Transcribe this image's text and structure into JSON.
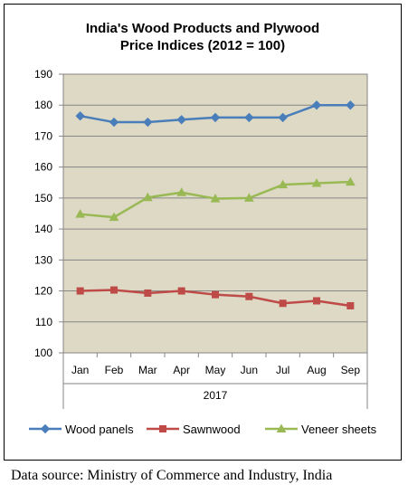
{
  "chart_data": {
    "type": "line",
    "title": [
      "India's Wood Products and Plywood",
      "Price Indices (2012 = 100)"
    ],
    "categories": [
      "Jan",
      "Feb",
      "Mar",
      "Apr",
      "May",
      "Jun",
      "Jul",
      "Aug",
      "Sep"
    ],
    "group_label": "2017",
    "ylim": [
      100,
      190
    ],
    "yticks": [
      100,
      110,
      120,
      130,
      140,
      150,
      160,
      170,
      180,
      190
    ],
    "grid": true,
    "legend_position": "bottom",
    "plot_background": "#ddd9c4",
    "series": [
      {
        "name": "Wood panels",
        "color": "#4a7ebb",
        "marker": "diamond",
        "values": [
          176.5,
          174.5,
          174.5,
          175.3,
          176,
          176,
          176,
          180,
          180
        ]
      },
      {
        "name": "Sawnwood",
        "color": "#be4b48",
        "marker": "square",
        "values": [
          120,
          120.3,
          119.3,
          120,
          118.8,
          118.2,
          116,
          116.8,
          115.2
        ]
      },
      {
        "name": "Veneer sheets",
        "color": "#98b954",
        "marker": "triangle",
        "values": [
          144.8,
          143.8,
          150.2,
          151.8,
          149.8,
          150,
          154.3,
          154.8,
          155.2
        ]
      }
    ]
  },
  "source": "Data source: Ministry of Commerce and Industry, India"
}
